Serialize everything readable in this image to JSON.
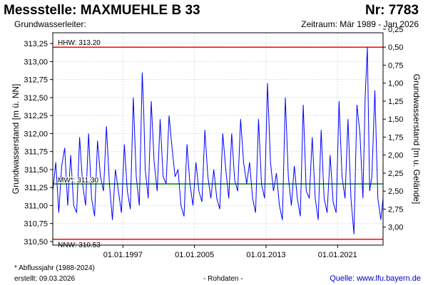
{
  "header": {
    "title": "Messstelle: MAXMUEHLE B 33",
    "number": "Nr: 7783",
    "aquifer_label": "Grundwasserleiter:",
    "period": "Zeitraum: Mär 1989 - Jan 2026"
  },
  "footer": {
    "note": "* Abflussjahr (1988-2024)",
    "created": "erstellt:  09.03.2026",
    "raw_data": "- Rohdaten -",
    "source": "Quelle: www.lfu.bayern.de"
  },
  "chart_data": {
    "type": "line",
    "ylabel_left": "Grundwasserstand [m ü. NN]",
    "ylabel_right": "Grundwasserstand [m u. Gelände]",
    "ylim": [
      310.45,
      313.4
    ],
    "ylim_right": [
      3.25,
      0.3
    ],
    "xlim": [
      "1989-03-01",
      "2026-01-31"
    ],
    "left_ticks": [
      "310,50",
      "310,75",
      "311,00",
      "311,25",
      "311,50",
      "311,75",
      "312,00",
      "312,25",
      "312,50",
      "312,75",
      "313,00",
      "313,25"
    ],
    "left_tick_values": [
      310.5,
      310.75,
      311.0,
      311.25,
      311.5,
      311.75,
      312.0,
      312.25,
      312.5,
      312.75,
      313.0,
      313.25
    ],
    "right_ticks": [
      "3,00",
      "2,75",
      "2,50",
      "2,25",
      "2,00",
      "1,75",
      "1,50",
      "1,25",
      "1,00",
      "0,75",
      "0,50",
      "0,25"
    ],
    "right_tick_values": [
      3.0,
      2.75,
      2.5,
      2.25,
      2.0,
      1.75,
      1.5,
      1.25,
      1.0,
      0.75,
      0.5,
      0.25
    ],
    "x_ticks": [
      "01.01.1997",
      "01.01.2005",
      "01.01.2013",
      "01.01.2021"
    ],
    "x_tick_dates": [
      "1997-01-01",
      "2005-01-01",
      "2013-01-01",
      "2021-01-01"
    ],
    "reference_lines": [
      {
        "label": "HHW: 313.20",
        "value": 313.2,
        "color": "#ff0000"
      },
      {
        "label": "MW*: 311.30",
        "value": 311.3,
        "color": "#008000"
      },
      {
        "label": "NNW: 310.53",
        "value": 310.53,
        "color": "#ff0000"
      }
    ],
    "series_color": "#0000ff",
    "grid": true,
    "series": [
      {
        "x": [
          "1989-03-01",
          "1989-07-01",
          "1989-11-01",
          "1990-03-01",
          "1990-07-01",
          "1990-11-01",
          "1991-03-01",
          "1991-07-01",
          "1991-11-01",
          "1992-03-01",
          "1992-07-01",
          "1992-11-01",
          "1993-03-01",
          "1993-07-01",
          "1993-11-01",
          "1994-03-01",
          "1994-07-01",
          "1994-11-01",
          "1995-03-01",
          "1995-07-01",
          "1995-11-01",
          "1996-03-01",
          "1996-07-01",
          "1996-11-01",
          "1997-03-01",
          "1997-07-01",
          "1997-11-01",
          "1998-03-01",
          "1998-07-01",
          "1998-11-01",
          "1999-03-01",
          "1999-05-01",
          "1999-07-01",
          "1999-11-01",
          "2000-03-01",
          "2000-07-01",
          "2000-11-01",
          "2001-03-01",
          "2001-07-01",
          "2001-11-01",
          "2002-03-01",
          "2002-07-01",
          "2002-11-01",
          "2003-03-01",
          "2003-07-01",
          "2003-11-01",
          "2004-03-01",
          "2004-07-01",
          "2004-11-01",
          "2005-03-01",
          "2005-07-01",
          "2005-11-01",
          "2006-03-01",
          "2006-07-01",
          "2006-11-01",
          "2007-03-01",
          "2007-07-01",
          "2007-11-01",
          "2008-03-01",
          "2008-07-01",
          "2008-11-01",
          "2009-03-01",
          "2009-07-01",
          "2009-11-01",
          "2010-03-01",
          "2010-07-01",
          "2010-11-01",
          "2011-03-01",
          "2011-07-01",
          "2011-11-01",
          "2012-03-01",
          "2012-07-01",
          "2012-11-01",
          "2013-03-01",
          "2013-07-01",
          "2013-11-01",
          "2014-03-01",
          "2014-07-01",
          "2014-11-01",
          "2015-03-01",
          "2015-07-01",
          "2015-11-01",
          "2016-03-01",
          "2016-07-01",
          "2016-11-01",
          "2017-03-01",
          "2017-07-01",
          "2017-11-01",
          "2018-03-01",
          "2018-07-01",
          "2018-11-01",
          "2019-03-01",
          "2019-07-01",
          "2019-11-01",
          "2020-03-01",
          "2020-07-01",
          "2020-11-01",
          "2021-03-01",
          "2021-07-01",
          "2021-11-01",
          "2022-03-01",
          "2022-07-01",
          "2022-11-01",
          "2023-03-01",
          "2023-07-01",
          "2023-11-01",
          "2024-02-01",
          "2024-05-01",
          "2024-08-01",
          "2024-11-01",
          "2025-03-01",
          "2025-07-01",
          "2025-11-01",
          "2026-01-31"
        ],
        "y": [
          311.2,
          311.6,
          310.9,
          311.55,
          311.8,
          311.0,
          311.7,
          311.0,
          310.9,
          311.95,
          311.3,
          311.0,
          312.0,
          311.1,
          310.85,
          311.9,
          311.4,
          311.2,
          312.1,
          311.3,
          310.8,
          311.5,
          311.2,
          310.9,
          311.85,
          311.2,
          310.95,
          312.5,
          311.4,
          311.0,
          312.85,
          312.3,
          311.5,
          311.1,
          312.45,
          311.6,
          311.2,
          312.2,
          311.4,
          311.3,
          312.25,
          311.8,
          311.4,
          311.5,
          311.0,
          310.85,
          311.85,
          311.3,
          311.0,
          311.6,
          311.2,
          311.05,
          312.05,
          311.4,
          311.1,
          311.5,
          311.1,
          310.95,
          312.0,
          311.5,
          311.1,
          312.0,
          311.35,
          311.2,
          312.2,
          311.6,
          311.3,
          311.6,
          311.1,
          310.9,
          312.2,
          311.3,
          311.1,
          312.7,
          311.6,
          311.2,
          311.45,
          311.0,
          310.8,
          312.5,
          311.4,
          311.0,
          311.55,
          311.1,
          310.85,
          312.4,
          311.2,
          311.1,
          311.95,
          311.1,
          310.8,
          312.05,
          311.1,
          310.9,
          311.7,
          311.05,
          310.9,
          312.45,
          311.4,
          311.1,
          312.2,
          311.1,
          310.6,
          312.4,
          312.0,
          311.1,
          312.5,
          313.2,
          311.2,
          311.4,
          312.6,
          311.1,
          310.8,
          311.1
        ]
      }
    ]
  }
}
